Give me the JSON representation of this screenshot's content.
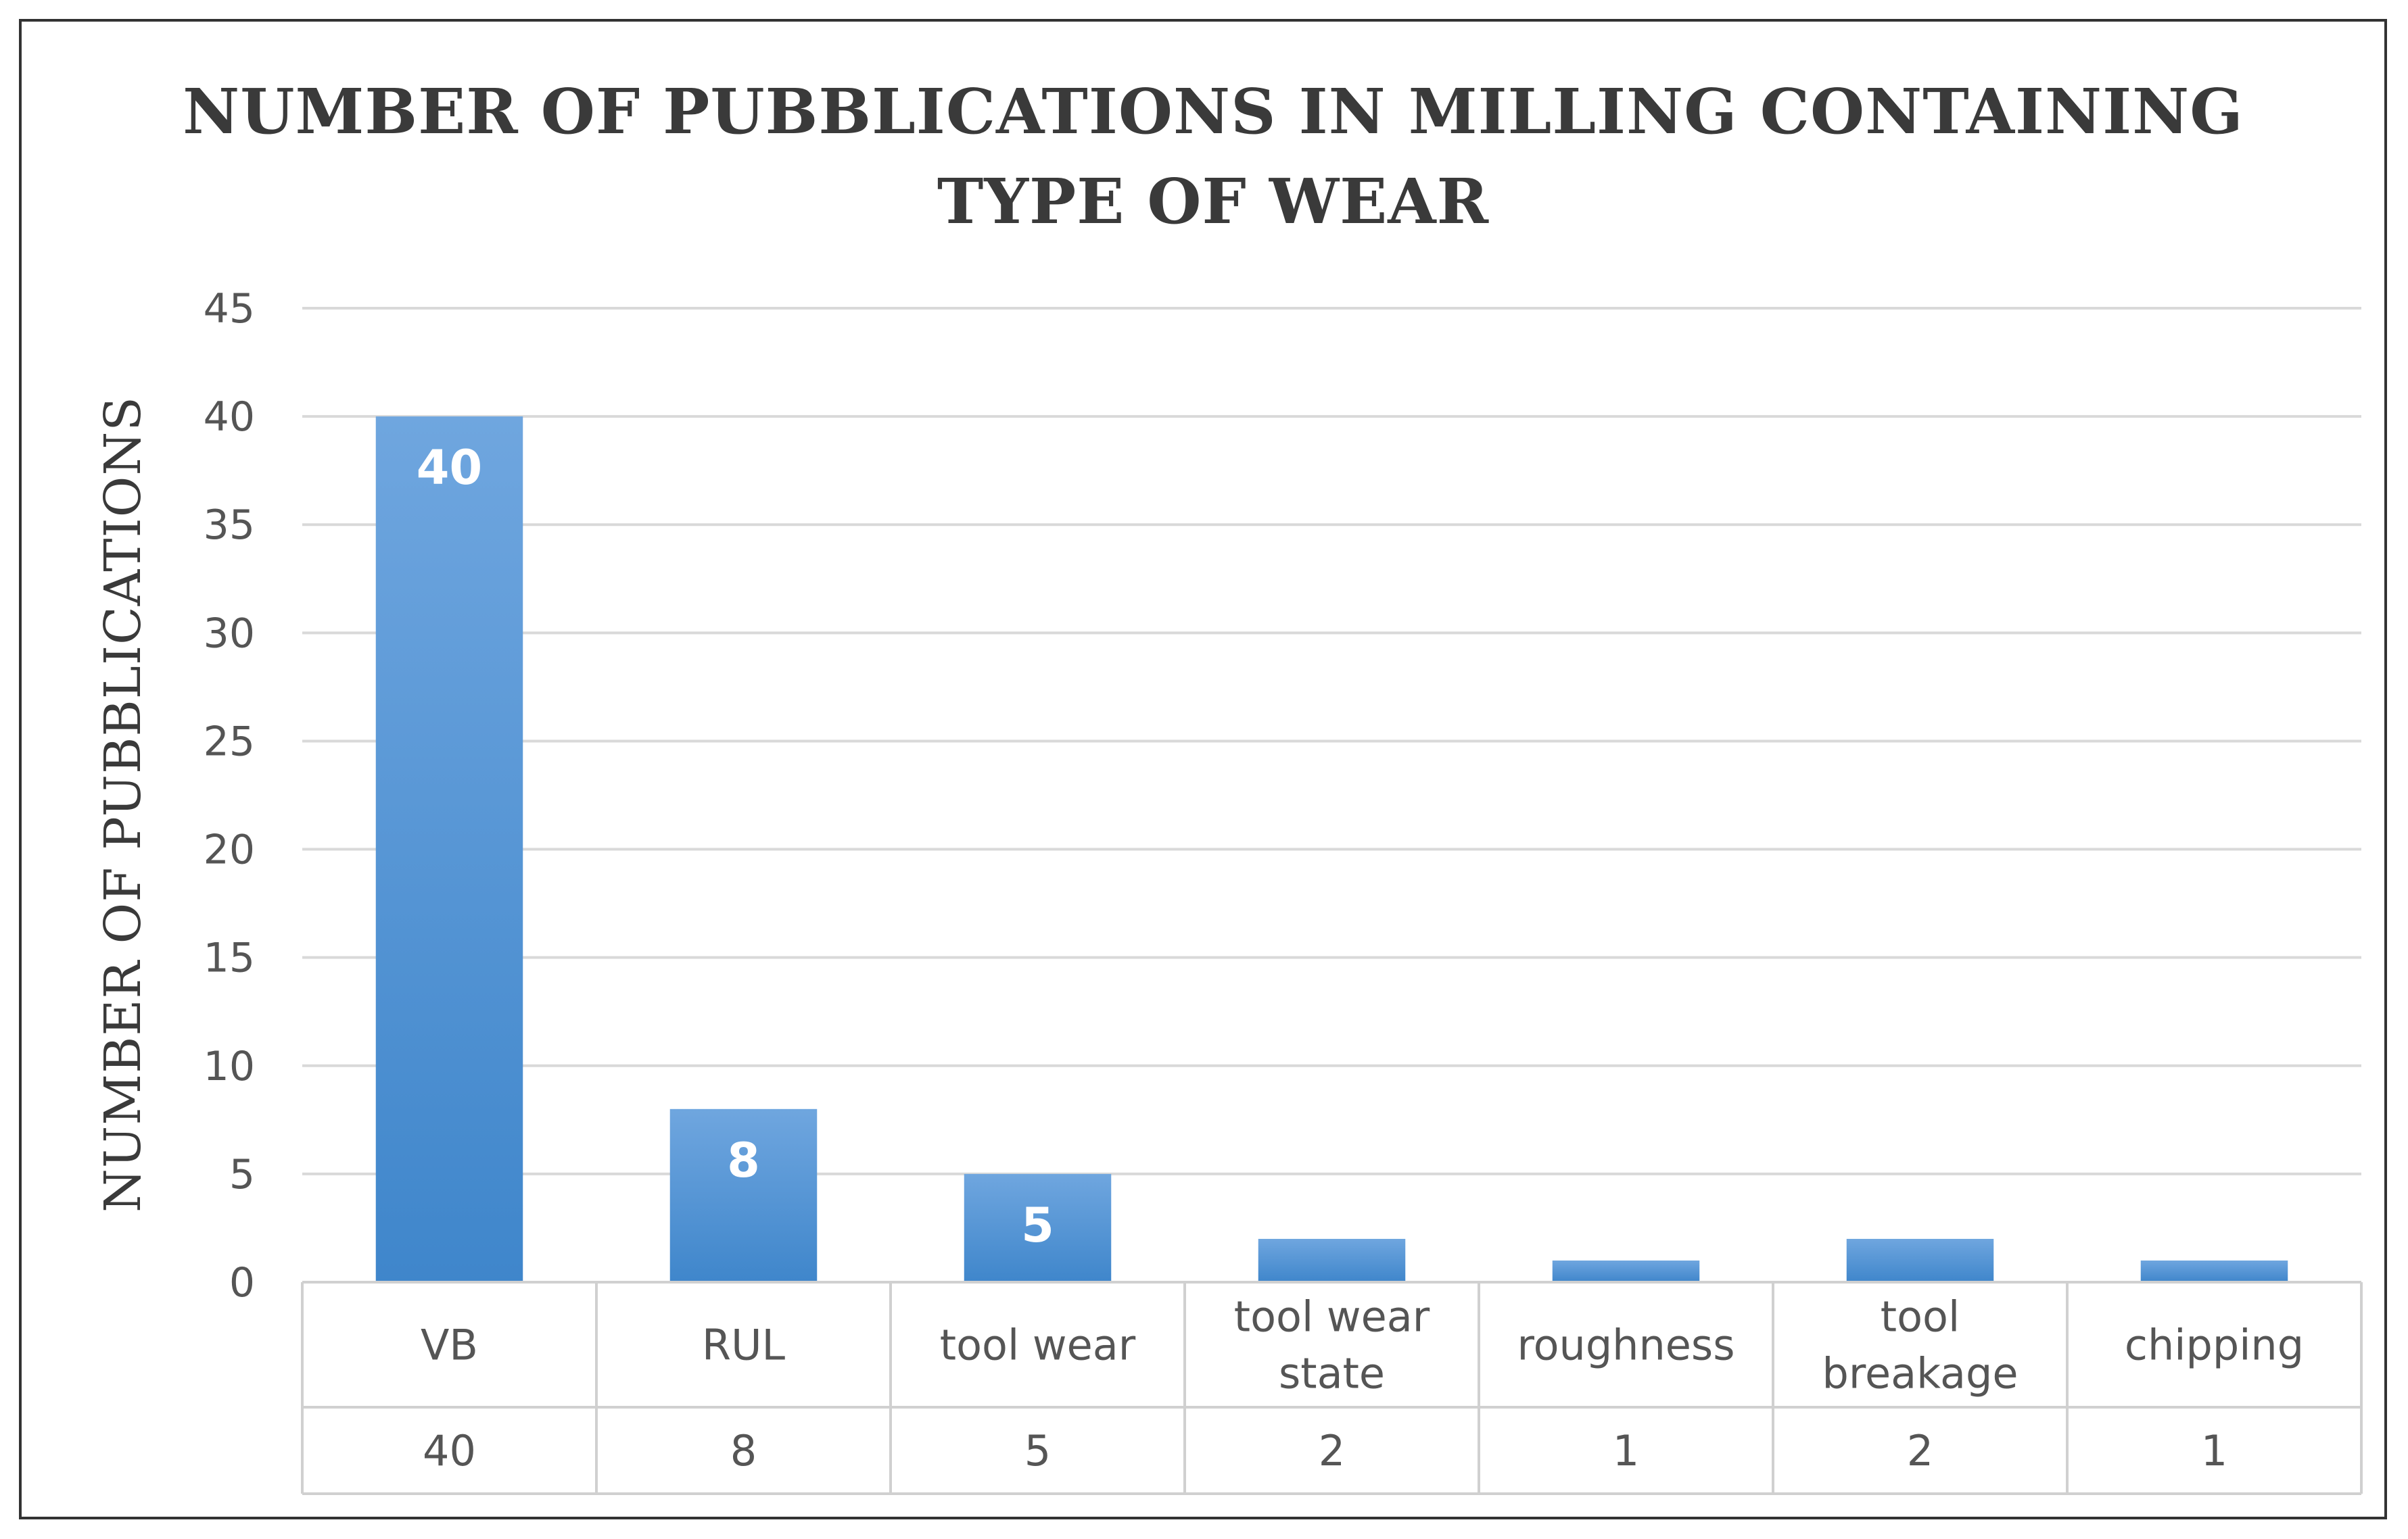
{
  "chart_data": {
    "type": "bar",
    "title_lines": [
      "NUMBER OF PUBBLICATIONS IN MILLING CONTAINING",
      "TYPE OF WEAR"
    ],
    "xlabel": "",
    "ylabel": "NUMBER OF PUBBLICATIONS",
    "categories": [
      [
        "VB"
      ],
      [
        "RUL"
      ],
      [
        "tool wear"
      ],
      [
        "tool wear",
        "state"
      ],
      [
        "roughness"
      ],
      [
        "tool",
        "breakage"
      ],
      [
        "chipping"
      ]
    ],
    "values": [
      40,
      8,
      5,
      2,
      1,
      2,
      1
    ],
    "data_labels": [
      "40",
      "8",
      "5",
      "",
      "",
      "",
      ""
    ],
    "table_values": [
      "40",
      "8",
      "5",
      "2",
      "1",
      "2",
      "1"
    ],
    "ylim": [
      0,
      45
    ],
    "yticks": [
      0,
      5,
      10,
      15,
      20,
      25,
      30,
      35,
      40,
      45
    ],
    "grid": true,
    "colors": {
      "bar_light": "#6fa6df",
      "bar_dark": "#3f86cb",
      "grid": "#d9d9d9",
      "table_border": "#d0d0d0"
    }
  }
}
